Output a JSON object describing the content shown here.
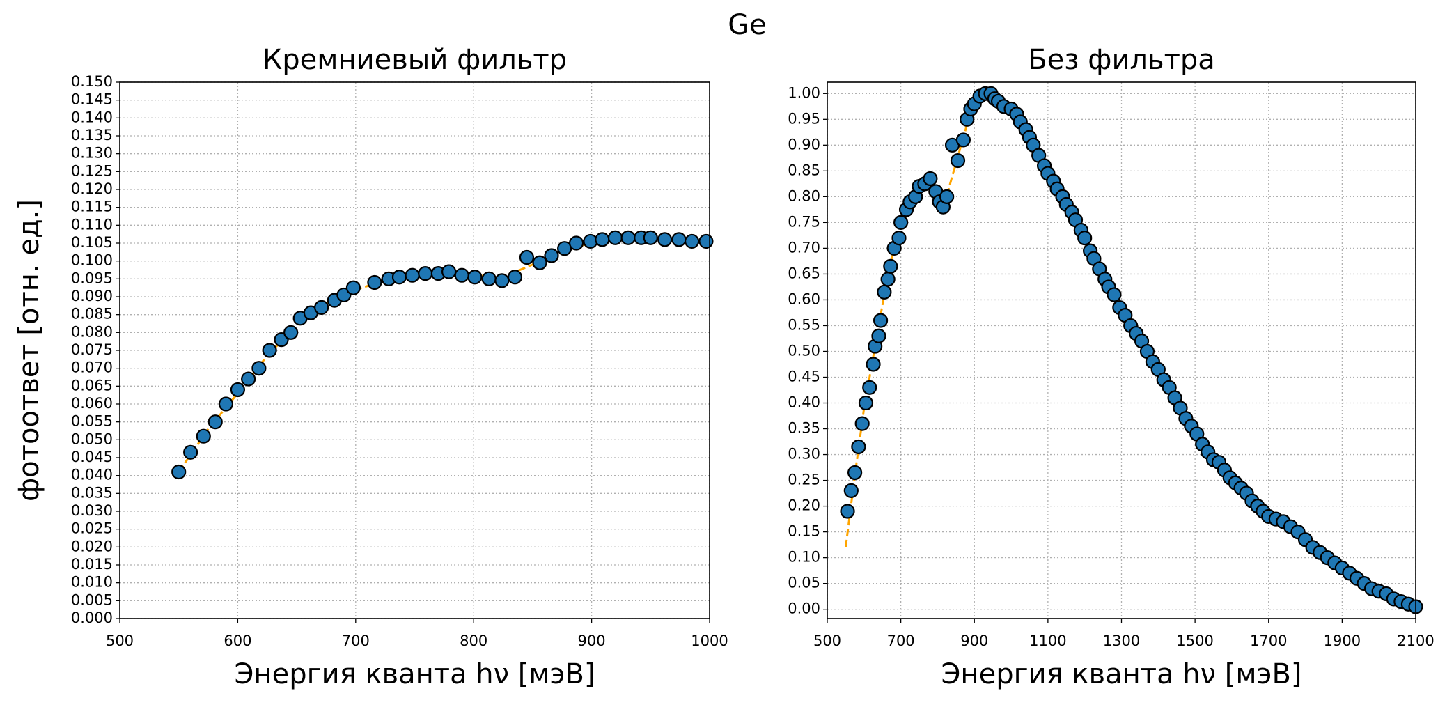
{
  "title": "Ge",
  "chart_data": [
    {
      "type": "scatter",
      "title": "Кремниевый фильтр",
      "xlabel": "Энергия кванта hν [мэВ]",
      "ylabel": "фотоответ [отн. ед.]",
      "xlim": [
        500,
        1000
      ],
      "xticks": [
        500,
        600,
        700,
        800,
        900,
        1000
      ],
      "ylim": [
        0,
        0.15
      ],
      "yticks": [
        {
          "value": 0,
          "label": "0.000"
        },
        {
          "value": 0.005,
          "label": "0.005"
        },
        {
          "value": 0.01,
          "label": "0.010"
        },
        {
          "value": 0.015,
          "label": "0.015"
        },
        {
          "value": 0.02,
          "label": "0.020"
        },
        {
          "value": 0.025,
          "label": "0.025"
        },
        {
          "value": 0.03,
          "label": "0.030"
        },
        {
          "value": 0.035,
          "label": "0.035"
        },
        {
          "value": 0.04,
          "label": "0.040"
        },
        {
          "value": 0.045,
          "label": "0.045"
        },
        {
          "value": 0.05,
          "label": "0.050"
        },
        {
          "value": 0.055,
          "label": "0.055"
        },
        {
          "value": 0.06,
          "label": "0.060"
        },
        {
          "value": 0.065,
          "label": "0.065"
        },
        {
          "value": 0.07,
          "label": "0.070"
        },
        {
          "value": 0.075,
          "label": "0.075"
        },
        {
          "value": 0.08,
          "label": "0.080"
        },
        {
          "value": 0.085,
          "label": "0.085"
        },
        {
          "value": 0.09,
          "label": "0.090"
        },
        {
          "value": 0.095,
          "label": "0.095"
        },
        {
          "value": 0.1,
          "label": "0.100"
        },
        {
          "value": 0.105,
          "label": "0.105"
        },
        {
          "value": 0.11,
          "label": "0.110"
        },
        {
          "value": 0.115,
          "label": "0.115"
        },
        {
          "value": 0.12,
          "label": "0.120"
        },
        {
          "value": 0.125,
          "label": "0.125"
        },
        {
          "value": 0.13,
          "label": "0.130"
        },
        {
          "value": 0.135,
          "label": "0.135"
        },
        {
          "value": 0.14,
          "label": "0.140"
        },
        {
          "value": 0.145,
          "label": "0.145"
        },
        {
          "value": 0.15,
          "label": "0.150"
        }
      ],
      "grid": true,
      "series": [
        {
          "style": "line",
          "color": "#ffa500",
          "x": [
            550,
            575,
            600,
            625,
            650,
            675,
            700,
            725,
            750,
            775,
            800,
            825,
            850,
            875,
            900,
            925,
            950,
            975,
            1000
          ],
          "values": [
            0.041,
            0.053,
            0.063,
            0.0735,
            0.082,
            0.088,
            0.092,
            0.0945,
            0.096,
            0.0965,
            0.096,
            0.0955,
            0.099,
            0.103,
            0.105,
            0.1065,
            0.1065,
            0.106,
            0.1055
          ]
        },
        {
          "style": "marker",
          "color": "#1f77b4",
          "x": [
            550,
            560,
            571,
            581,
            590,
            600,
            609,
            618,
            627,
            637,
            645,
            653,
            662,
            671,
            682,
            690,
            698,
            716,
            728,
            737,
            748,
            759,
            770,
            779,
            790,
            801,
            813,
            824,
            835,
            845,
            856,
            866,
            877,
            887,
            899,
            909,
            920,
            931,
            942,
            950,
            962,
            974,
            985,
            997
          ],
          "values": [
            0.041,
            0.0465,
            0.051,
            0.055,
            0.06,
            0.064,
            0.067,
            0.07,
            0.075,
            0.078,
            0.08,
            0.084,
            0.0855,
            0.087,
            0.089,
            0.0905,
            0.0925,
            0.094,
            0.095,
            0.0955,
            0.096,
            0.0965,
            0.0965,
            0.097,
            0.096,
            0.0955,
            0.095,
            0.0945,
            0.0955,
            0.101,
            0.0995,
            0.1015,
            0.1035,
            0.105,
            0.1055,
            0.106,
            0.1065,
            0.1065,
            0.1065,
            0.1065,
            0.106,
            0.106,
            0.1055,
            0.1055
          ]
        }
      ]
    },
    {
      "type": "scatter",
      "title": "Без фильтра",
      "xlabel": "Энергия кванта hν [мэВ]",
      "xlim": [
        500,
        2100
      ],
      "xticks": [
        500,
        700,
        900,
        1100,
        1300,
        1500,
        1700,
        1900,
        2100
      ],
      "ylim": [
        -0.018,
        1.022
      ],
      "yticks": [
        {
          "value": 0,
          "label": "0.00"
        },
        {
          "value": 0.05,
          "label": "0.05"
        },
        {
          "value": 0.1,
          "label": "0.10"
        },
        {
          "value": 0.15,
          "label": "0.15"
        },
        {
          "value": 0.2,
          "label": "0.20"
        },
        {
          "value": 0.25,
          "label": "0.25"
        },
        {
          "value": 0.3,
          "label": "0.30"
        },
        {
          "value": 0.35,
          "label": "0.35"
        },
        {
          "value": 0.4,
          "label": "0.40"
        },
        {
          "value": 0.45,
          "label": "0.45"
        },
        {
          "value": 0.5,
          "label": "0.50"
        },
        {
          "value": 0.55,
          "label": "0.55"
        },
        {
          "value": 0.6,
          "label": "0.60"
        },
        {
          "value": 0.65,
          "label": "0.65"
        },
        {
          "value": 0.7,
          "label": "0.70"
        },
        {
          "value": 0.75,
          "label": "0.75"
        },
        {
          "value": 0.8,
          "label": "0.80"
        },
        {
          "value": 0.85,
          "label": "0.85"
        },
        {
          "value": 0.9,
          "label": "0.90"
        },
        {
          "value": 0.95,
          "label": "0.95"
        },
        {
          "value": 1,
          "label": "1.00"
        }
      ],
      "grid": true,
      "series": [
        {
          "style": "line",
          "color": "#ffa500",
          "x": [
            550,
            575,
            600,
            625,
            650,
            675,
            700,
            725,
            750,
            775,
            800,
            820,
            840,
            860,
            880,
            900,
            925,
            950,
            975,
            1000,
            1050,
            1100,
            1150,
            1200,
            1250,
            1300,
            1350,
            1400,
            1450,
            1500,
            1550,
            1600,
            1650,
            1700,
            1750,
            1800,
            1850,
            1900,
            1950,
            2000,
            2050,
            2100
          ],
          "values": [
            0.12,
            0.26,
            0.39,
            0.49,
            0.59,
            0.68,
            0.74,
            0.78,
            0.81,
            0.83,
            0.81,
            0.79,
            0.84,
            0.89,
            0.94,
            0.975,
            1.0,
            0.995,
            0.98,
            0.965,
            0.915,
            0.845,
            0.785,
            0.72,
            0.645,
            0.58,
            0.525,
            0.465,
            0.405,
            0.345,
            0.29,
            0.255,
            0.215,
            0.18,
            0.165,
            0.135,
            0.105,
            0.08,
            0.055,
            0.035,
            0.018,
            0.005
          ]
        },
        {
          "style": "marker",
          "color": "#1f77b4",
          "x": [
            555,
            565,
            575,
            585,
            595,
            605,
            615,
            625,
            630,
            640,
            645,
            655,
            665,
            672,
            682,
            695,
            700,
            715,
            725,
            740,
            750,
            765,
            780,
            795,
            805,
            815,
            825,
            840,
            855,
            870,
            880,
            890,
            900,
            915,
            930,
            945,
            955,
            965,
            980,
            1000,
            1015,
            1025,
            1040,
            1050,
            1060,
            1075,
            1090,
            1100,
            1115,
            1125,
            1140,
            1150,
            1165,
            1175,
            1190,
            1200,
            1215,
            1225,
            1240,
            1255,
            1265,
            1280,
            1295,
            1310,
            1325,
            1340,
            1355,
            1370,
            1385,
            1400,
            1415,
            1430,
            1445,
            1460,
            1475,
            1490,
            1505,
            1520,
            1535,
            1550,
            1565,
            1580,
            1595,
            1610,
            1625,
            1640,
            1655,
            1670,
            1685,
            1700,
            1720,
            1740,
            1760,
            1780,
            1800,
            1820,
            1840,
            1860,
            1880,
            1900,
            1920,
            1940,
            1960,
            1980,
            2000,
            2020,
            2040,
            2060,
            2080,
            2100
          ],
          "values": [
            0.19,
            0.23,
            0.265,
            0.315,
            0.36,
            0.4,
            0.43,
            0.475,
            0.51,
            0.53,
            0.56,
            0.615,
            0.64,
            0.665,
            0.7,
            0.72,
            0.75,
            0.775,
            0.79,
            0.8,
            0.82,
            0.825,
            0.835,
            0.81,
            0.79,
            0.78,
            0.8,
            0.9,
            0.87,
            0.91,
            0.95,
            0.97,
            0.98,
            0.995,
            1.0,
            1.0,
            0.99,
            0.985,
            0.975,
            0.97,
            0.96,
            0.945,
            0.93,
            0.915,
            0.9,
            0.88,
            0.86,
            0.845,
            0.83,
            0.815,
            0.8,
            0.785,
            0.77,
            0.755,
            0.735,
            0.72,
            0.695,
            0.68,
            0.66,
            0.64,
            0.625,
            0.61,
            0.585,
            0.57,
            0.55,
            0.535,
            0.52,
            0.5,
            0.48,
            0.465,
            0.445,
            0.43,
            0.41,
            0.39,
            0.37,
            0.355,
            0.34,
            0.32,
            0.305,
            0.29,
            0.285,
            0.27,
            0.255,
            0.245,
            0.235,
            0.225,
            0.21,
            0.2,
            0.19,
            0.18,
            0.175,
            0.17,
            0.16,
            0.15,
            0.135,
            0.12,
            0.11,
            0.1,
            0.09,
            0.08,
            0.07,
            0.06,
            0.05,
            0.04,
            0.035,
            0.03,
            0.02,
            0.015,
            0.01,
            0.005
          ]
        }
      ]
    }
  ]
}
